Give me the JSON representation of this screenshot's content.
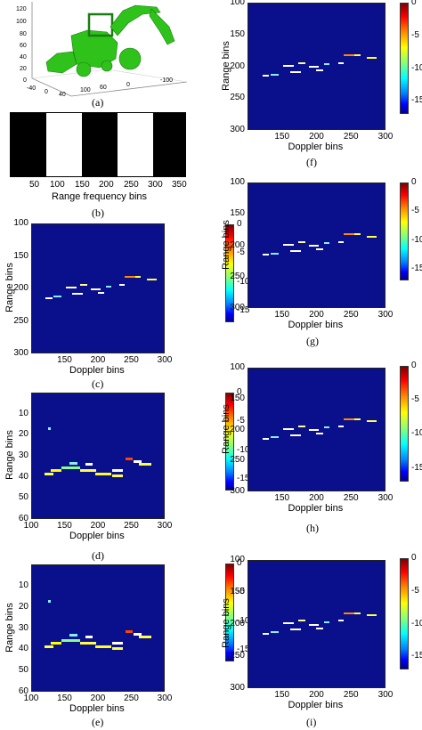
{
  "captions": {
    "a": "(a)",
    "b": "(b)",
    "c": "(c)",
    "d": "(d)",
    "e": "(e)",
    "f": "(f)",
    "g": "(g)",
    "h": "(h)",
    "i": "(i)"
  },
  "panel_a": {
    "z_ticks": [
      "120",
      "100",
      "80",
      "60",
      "40",
      "20",
      "0"
    ],
    "x_ticks": [
      "-40",
      "0",
      "40",
      "100",
      "60",
      "0",
      "-100"
    ],
    "colors": {
      "model": "#2ec21a"
    }
  },
  "panel_b": {
    "xlabel": "Range frequency bins",
    "x_ticks": [
      "50",
      "100",
      "150",
      "200",
      "250",
      "300",
      "350"
    ]
  },
  "chart_data": [
    {
      "id": "c",
      "type": "heatmap",
      "xlabel": "Doppler bins",
      "ylabel": "Range bins",
      "xlim": [
        100,
        300
      ],
      "ylim": [
        100,
        300
      ],
      "x_ticks": [
        "150",
        "200",
        "250",
        "300"
      ],
      "y_ticks": [
        "100",
        "150",
        "200",
        "250",
        "300"
      ],
      "colorbar_ticks": [
        "0",
        "-5",
        "-10",
        "-15"
      ]
    },
    {
      "id": "d",
      "type": "heatmap",
      "xlabel": "Doppler bins",
      "ylabel": "Range bins",
      "xlim": [
        100,
        300
      ],
      "ylim": [
        0,
        60
      ],
      "x_ticks": [
        "100",
        "150",
        "200",
        "250",
        "300"
      ],
      "y_ticks": [
        "10",
        "20",
        "30",
        "40",
        "50",
        "60"
      ],
      "colorbar_ticks": [
        "0",
        "-5",
        "-10",
        "-15"
      ]
    },
    {
      "id": "e",
      "type": "heatmap",
      "xlabel": "Doppler bins",
      "ylabel": "Range bins",
      "xlim": [
        100,
        300
      ],
      "ylim": [
        0,
        60
      ],
      "x_ticks": [
        "100",
        "150",
        "200",
        "250",
        "300"
      ],
      "y_ticks": [
        "10",
        "20",
        "30",
        "40",
        "50",
        "60"
      ],
      "colorbar_ticks": [
        "0",
        "-5",
        "-10",
        "-15"
      ]
    },
    {
      "id": "f",
      "type": "heatmap",
      "xlabel": "Doppler bins",
      "ylabel": "Range bins",
      "xlim": [
        100,
        300
      ],
      "ylim": [
        100,
        300
      ],
      "x_ticks": [
        "150",
        "200",
        "250",
        "300"
      ],
      "y_ticks": [
        "100",
        "150",
        "200",
        "250",
        "300"
      ],
      "colorbar_ticks": [
        "0",
        "-5",
        "-10",
        "-15"
      ]
    },
    {
      "id": "g",
      "type": "heatmap",
      "xlabel": "Doppler bins",
      "ylabel": "Range bins",
      "xlim": [
        100,
        300
      ],
      "ylim": [
        100,
        300
      ],
      "x_ticks": [
        "150",
        "200",
        "250",
        "300"
      ],
      "y_ticks": [
        "100",
        "150",
        "200",
        "250",
        "300"
      ],
      "colorbar_ticks": [
        "0",
        "-5",
        "-10",
        "-15"
      ]
    },
    {
      "id": "h",
      "type": "heatmap",
      "xlabel": "Doppler bins",
      "ylabel": "Range bins",
      "xlim": [
        100,
        300
      ],
      "ylim": [
        100,
        300
      ],
      "x_ticks": [
        "150",
        "200",
        "250",
        "300"
      ],
      "y_ticks": [
        "100",
        "150",
        "200",
        "250",
        "300"
      ],
      "colorbar_ticks": [
        "0",
        "-5",
        "-10",
        "-15"
      ]
    },
    {
      "id": "i",
      "type": "heatmap",
      "xlabel": "Doppler bins",
      "ylabel": "Range bins",
      "xlim": [
        100,
        300
      ],
      "ylim": [
        100,
        300
      ],
      "x_ticks": [
        "150",
        "200",
        "250",
        "300"
      ],
      "y_ticks": [
        "100",
        "150",
        "200",
        "250",
        "300"
      ],
      "colorbar_ticks": [
        "0",
        "-5",
        "-10",
        "-15"
      ]
    }
  ]
}
